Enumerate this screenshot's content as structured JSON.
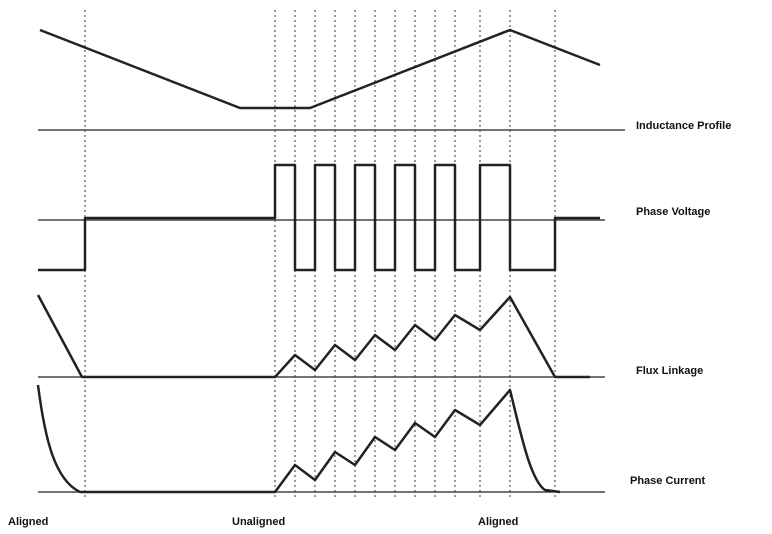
{
  "signals": [
    {
      "label": "Inductance Profile"
    },
    {
      "label": "Phase Voltage"
    },
    {
      "label": "Flux Linkage"
    },
    {
      "label": "Phase Current"
    }
  ],
  "positions": [
    "Aligned",
    "Unaligned",
    "Aligned"
  ]
}
